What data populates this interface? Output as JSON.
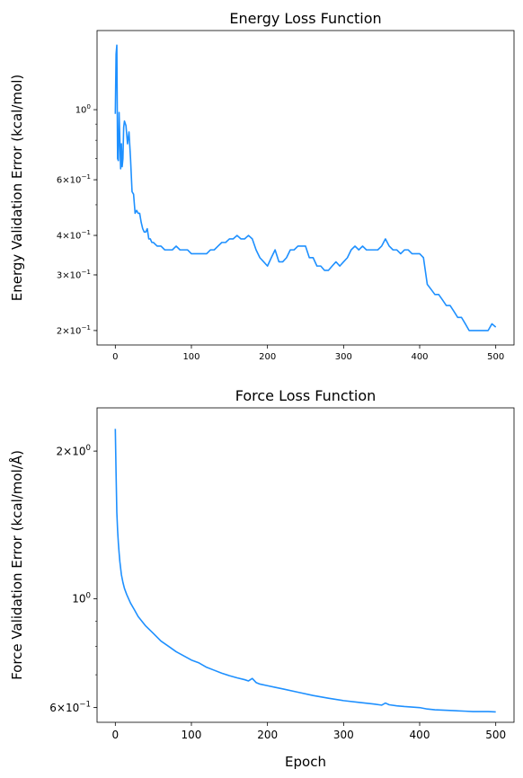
{
  "chart_data": [
    {
      "type": "line",
      "title": "Energy Loss Function",
      "xlabel": "",
      "ylabel": "Energy Validation Error (kcal/mol)",
      "yscale": "log",
      "xlim": [
        -24,
        524
      ],
      "ylim": [
        0.18,
        1.78
      ],
      "grid": false,
      "x_ticks": [
        0,
        100,
        200,
        300,
        400,
        500
      ],
      "x_tick_labels": [
        "0",
        "100",
        "200",
        "300",
        "400",
        "500"
      ],
      "y_ticks": [
        {
          "value": 1.0,
          "label": "10^0",
          "mantissa": "",
          "base": "10",
          "exp": "0"
        },
        {
          "value": 0.6,
          "label": "6×10^-1",
          "mantissa": "6×",
          "base": "10",
          "exp": "−1"
        },
        {
          "value": 0.4,
          "label": "4×10^-1",
          "mantissa": "4×",
          "base": "10",
          "exp": "−1"
        },
        {
          "value": 0.3,
          "label": "3×10^-1",
          "mantissa": "3×",
          "base": "10",
          "exp": "−1"
        },
        {
          "value": 0.2,
          "label": "2×10^-1",
          "mantissa": "2×",
          "base": "10",
          "exp": "−1"
        }
      ],
      "color": "#1e90ff",
      "series": [
        {
          "x": [
            0,
            1,
            2,
            3,
            4,
            5,
            6,
            7,
            8,
            9,
            10,
            11,
            12,
            14,
            16,
            18,
            20,
            22,
            24,
            26,
            28,
            30,
            32,
            34,
            36,
            38,
            40,
            42,
            44,
            46,
            48,
            50,
            55,
            60,
            65,
            70,
            75,
            80,
            85,
            90,
            95,
            100,
            105,
            110,
            115,
            120,
            125,
            130,
            135,
            140,
            145,
            150,
            155,
            160,
            165,
            170,
            175,
            180,
            185,
            190,
            195,
            200,
            205,
            210,
            215,
            220,
            225,
            230,
            235,
            240,
            245,
            250,
            255,
            260,
            265,
            270,
            275,
            280,
            285,
            290,
            295,
            300,
            305,
            310,
            315,
            320,
            325,
            330,
            335,
            340,
            345,
            350,
            355,
            360,
            365,
            370,
            375,
            380,
            385,
            390,
            395,
            400,
            405,
            410,
            415,
            420,
            425,
            430,
            435,
            440,
            445,
            450,
            455,
            460,
            465,
            470,
            475,
            480,
            485,
            490,
            495,
            500
          ],
          "y": [
            0.97,
            1.5,
            1.6,
            0.7,
            0.69,
            0.98,
            0.8,
            0.65,
            0.78,
            0.66,
            0.7,
            0.88,
            0.92,
            0.89,
            0.78,
            0.85,
            0.7,
            0.55,
            0.54,
            0.47,
            0.48,
            0.47,
            0.47,
            0.44,
            0.42,
            0.41,
            0.41,
            0.42,
            0.39,
            0.39,
            0.38,
            0.38,
            0.37,
            0.37,
            0.36,
            0.36,
            0.36,
            0.37,
            0.36,
            0.36,
            0.36,
            0.35,
            0.35,
            0.35,
            0.35,
            0.35,
            0.36,
            0.36,
            0.37,
            0.38,
            0.38,
            0.39,
            0.39,
            0.4,
            0.39,
            0.39,
            0.4,
            0.39,
            0.36,
            0.34,
            0.33,
            0.32,
            0.34,
            0.36,
            0.33,
            0.33,
            0.34,
            0.36,
            0.36,
            0.37,
            0.37,
            0.37,
            0.34,
            0.34,
            0.32,
            0.32,
            0.31,
            0.31,
            0.32,
            0.33,
            0.32,
            0.33,
            0.34,
            0.36,
            0.37,
            0.36,
            0.37,
            0.36,
            0.36,
            0.36,
            0.36,
            0.37,
            0.39,
            0.37,
            0.36,
            0.36,
            0.35,
            0.36,
            0.36,
            0.35,
            0.35,
            0.35,
            0.34,
            0.28,
            0.27,
            0.26,
            0.26,
            0.25,
            0.24,
            0.24,
            0.23,
            0.22,
            0.22,
            0.21,
            0.2,
            0.2,
            0.2,
            0.2,
            0.2,
            0.2,
            0.21,
            0.205
          ]
        }
      ]
    },
    {
      "type": "line",
      "title": "Force Loss Function",
      "xlabel": "Epoch",
      "ylabel": "Force Validation Error (kcal/mol/Å)",
      "yscale": "log",
      "xlim": [
        -24,
        524
      ],
      "ylim": [
        0.56,
        2.45
      ],
      "grid": false,
      "x_ticks": [
        0,
        100,
        200,
        300,
        400,
        500
      ],
      "x_tick_labels": [
        "0",
        "100",
        "200",
        "300",
        "400",
        "500"
      ],
      "y_ticks": [
        {
          "value": 2.0,
          "label": "2×10^0",
          "mantissa": "2×",
          "base": "10",
          "exp": "0"
        },
        {
          "value": 1.0,
          "label": "10^0",
          "mantissa": "",
          "base": "10",
          "exp": "0"
        },
        {
          "value": 0.6,
          "label": "6×10^-1",
          "mantissa": "6×",
          "base": "10",
          "exp": "−1"
        }
      ],
      "color": "#1e90ff",
      "series": [
        {
          "x": [
            0,
            1,
            2,
            3,
            4,
            5,
            6,
            8,
            10,
            12,
            15,
            20,
            25,
            30,
            40,
            50,
            60,
            70,
            80,
            90,
            100,
            110,
            120,
            130,
            140,
            150,
            160,
            170,
            175,
            180,
            185,
            190,
            200,
            210,
            220,
            240,
            260,
            280,
            300,
            320,
            340,
            350,
            355,
            360,
            370,
            380,
            400,
            410,
            420,
            440,
            460,
            470,
            480,
            490,
            500
          ],
          "y": [
            2.22,
            1.8,
            1.5,
            1.38,
            1.3,
            1.24,
            1.19,
            1.12,
            1.08,
            1.05,
            1.02,
            0.98,
            0.95,
            0.92,
            0.88,
            0.85,
            0.82,
            0.8,
            0.78,
            0.765,
            0.75,
            0.74,
            0.725,
            0.715,
            0.705,
            0.697,
            0.69,
            0.684,
            0.68,
            0.688,
            0.675,
            0.67,
            0.665,
            0.66,
            0.655,
            0.645,
            0.635,
            0.627,
            0.62,
            0.615,
            0.61,
            0.607,
            0.613,
            0.608,
            0.605,
            0.603,
            0.6,
            0.596,
            0.594,
            0.592,
            0.59,
            0.589,
            0.589,
            0.589,
            0.588
          ]
        }
      ]
    }
  ]
}
